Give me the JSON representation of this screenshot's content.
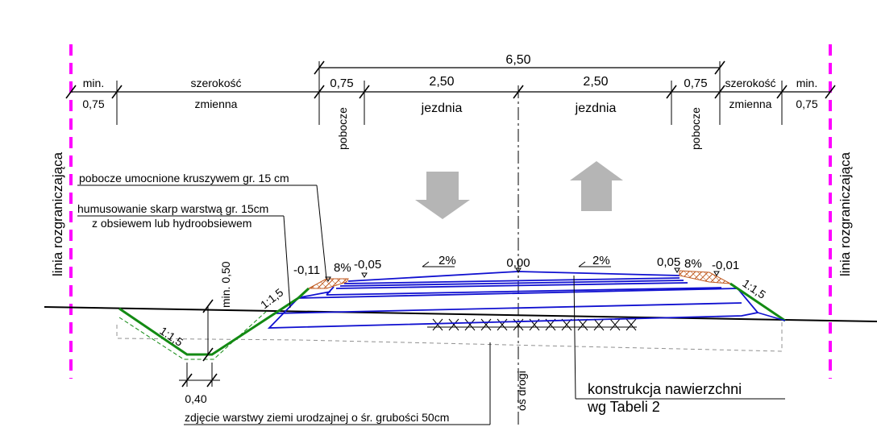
{
  "colors": {
    "boundary": "#ff00ff",
    "slope": "#138a13",
    "pavement": "#1010d0",
    "arrow": "#b5b5b5",
    "shoulder_fill": "#f2a060",
    "line": "#000000"
  },
  "dimensions": {
    "total": "6,50",
    "min_left": "min.",
    "min_left_val": "0,75",
    "var_left_top": "szerokość",
    "var_left_bottom": "zmienna",
    "shoulder_left": "0,75",
    "lane_left": "2,50",
    "lane_left_label": "jezdnia",
    "lane_right": "2,50",
    "lane_right_label": "jezdnia",
    "shoulder_right": "0,75",
    "var_right_top": "szerokość",
    "var_right_bottom": "zmienna",
    "min_right": "min.",
    "min_right_val": "0,75",
    "shoulder_word_left": "pobocze",
    "shoulder_word_right": "pobocze"
  },
  "boundary_label": "linia rozgraniczająca",
  "notes": {
    "shoulder_reinforced": "pobocze umocnione kruszywem gr. 15 cm",
    "humus_line1": "humusowanie skarp warstwą gr. 15cm",
    "humus_line2": "z obsiewem lub hydroobsiewem",
    "topsoil": "zdjęcie warstwy ziemi urodzajnej o śr. grubości 50cm",
    "construction_line1": "konstrukcja nawierzchni",
    "construction_line2": "wg Tabeli 2",
    "axis": "oś drogi"
  },
  "elevations": {
    "left_edge": "-0,11",
    "left_shoulder_slope": "8%",
    "left_shoulder_edge": "-0,05",
    "left_lane_slope": "2%",
    "axis": "0,00",
    "right_lane_slope": "2%",
    "right_shoulder_edge": "0,05",
    "right_shoulder_slope": "8%",
    "right_edge": "-0,01"
  },
  "slopes": {
    "ditch_slope": "1:1,5",
    "left_embankment": "1:1,5",
    "right_embankment": "1:1,5",
    "ditch_depth": "min. 0,50",
    "ditch_bottom": "0,40"
  }
}
